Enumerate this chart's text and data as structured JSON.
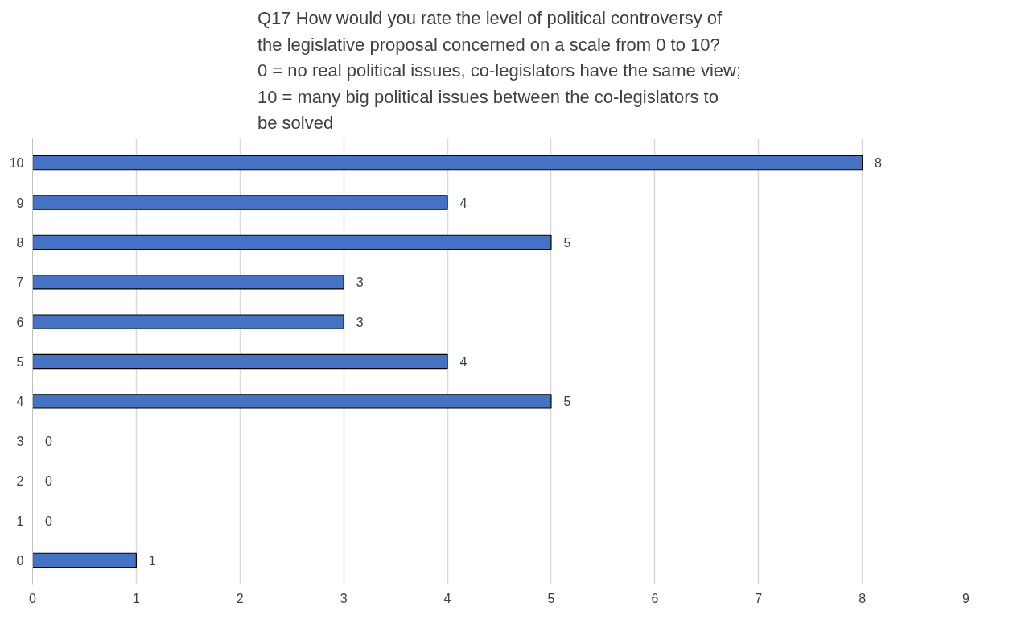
{
  "chart_data": {
    "type": "bar",
    "orientation": "horizontal",
    "title": "Q17 How would you rate the level of political controversy of\nthe legislative proposal concerned on a scale from 0 to 10?\n0 = no real political issues, co-legislators have the same view;\n10 = many big political issues between the co-legislators to\nbe solved",
    "categories": [
      "10",
      "9",
      "8",
      "7",
      "6",
      "5",
      "4",
      "3",
      "2",
      "1",
      "0"
    ],
    "values": [
      8,
      4,
      5,
      3,
      3,
      4,
      5,
      0,
      0,
      0,
      1
    ],
    "color": "#4472c4",
    "xlim": [
      0,
      9
    ],
    "xticks": [
      0,
      1,
      2,
      3,
      4,
      5,
      6,
      7,
      8,
      9
    ],
    "grid": "x",
    "data_labels": true
  }
}
